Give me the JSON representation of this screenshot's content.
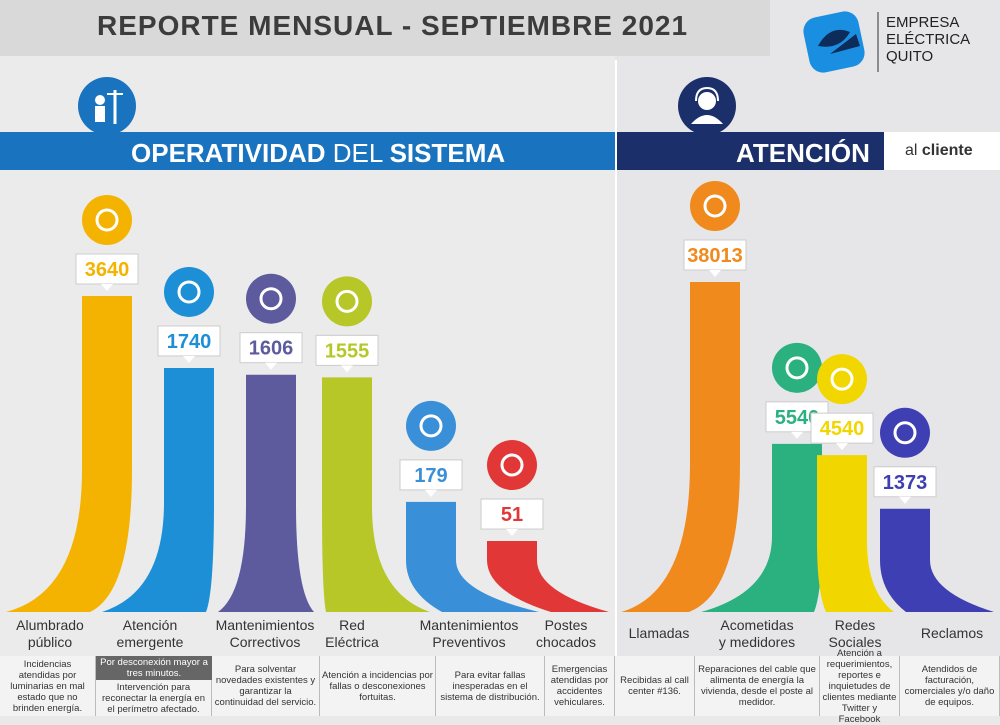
{
  "header": {
    "title": "REPORTE  MENSUAL - SEPTIEMBRE 2021",
    "logo_lines": [
      "EMPRESA",
      "ELÉCTRICA",
      "QUITO"
    ]
  },
  "sections": {
    "left_title_a": "OPERATIVIDAD",
    "left_title_b": " DEL ",
    "left_title_c": "SISTEMA",
    "right_title": "ATENCIÓN",
    "right_sub_a": "al ",
    "right_sub_b": "cliente"
  },
  "colors": {
    "blue_band": "#1a73be",
    "navy_band": "#1b2f6b"
  },
  "chart_data": {
    "type": "bar",
    "categories": [
      "Alumbrado\npúblico",
      "Atención\nemergente",
      "Mantenimientos\nCorrectivos",
      "Red\nEléctrica",
      "Mantenimientos\nPreventivos",
      "Postes\nchocados",
      "Llamadas",
      "Acometidas\ny medidores",
      "Redes\nSociales",
      "Reclamos"
    ],
    "values": [
      3640,
      1740,
      1606,
      1555,
      179,
      51,
      38013,
      5540,
      4540,
      1373
    ],
    "value_labels": [
      "3640",
      "1740",
      "1606",
      "1555",
      "179",
      "51",
      "38013",
      "5540",
      "4540",
      "1373"
    ],
    "colors": [
      "#f5b301",
      "#1c8fd6",
      "#5d5a9e",
      "#b6c727",
      "#3a8fd9",
      "#e23737",
      "#f08a1c",
      "#2bb07f",
      "#f2d600",
      "#3f3fb4"
    ],
    "icons": [
      "street-light-icon",
      "worker-icon",
      "plug-icon",
      "lightning-icon",
      "gear-hands-icon",
      "car-crash-icon",
      "phone-icon",
      "meter-icon",
      "social-phone-icon",
      "complaint-icon"
    ],
    "groups": [
      "OPERATIVIDAD DEL SISTEMA",
      "ATENCIÓN al cliente"
    ]
  },
  "footer": {
    "notes": [
      "Incidencias atendidas por luminarias en mal estado que no brinden energía.",
      "Intervención para reconectar la energía en el perímetro afectado.",
      "Para solventar novedades existentes y garantizar la continuidad del servicio.",
      "Atención a incidencias por fallas o desconexiones fortuitas.",
      "Para evitar fallas inesperadas en el sistema de distribución.",
      "Emergencias atendidas por accidentes vehiculares.",
      "Recibidas al call center #136.",
      "Reparaciones del cable que alimenta de energía la vivienda, desde el poste al medidor.",
      "Atención a requerimientos, reportes e inquietudes de clientes mediante Twitter y Facebook",
      "Atendidos de facturación, comerciales y/o daño de equipos."
    ],
    "highlight": "Por desconexión mayor a tres minutos."
  }
}
